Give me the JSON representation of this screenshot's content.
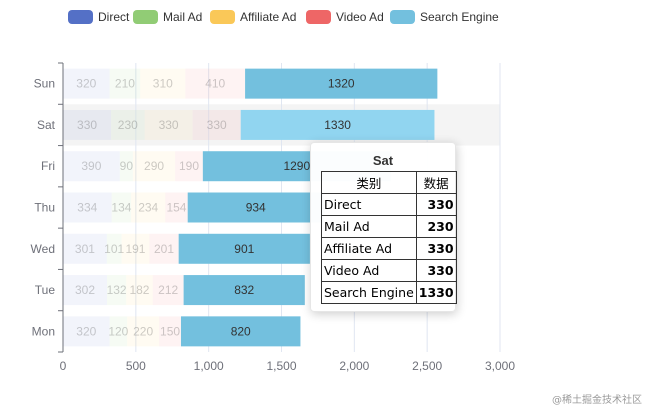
{
  "colors": {
    "Direct": "#5470c6",
    "Mail Ad": "#91cc75",
    "Affiliate Ad": "#fac858",
    "Video Ad": "#ee6666",
    "Search Engine": "#73c0de",
    "highlight": "#91d5f0",
    "axis": "#6e7079",
    "grid": "#e0e6f1"
  },
  "chart_data": {
    "type": "bar",
    "orientation": "horizontal",
    "stacked": true,
    "categories": [
      "Mon",
      "Tue",
      "Wed",
      "Thu",
      "Fri",
      "Sat",
      "Sun"
    ],
    "series": [
      {
        "name": "Direct",
        "values": [
          320,
          302,
          301,
          334,
          390,
          330,
          320
        ]
      },
      {
        "name": "Mail Ad",
        "values": [
          120,
          132,
          101,
          134,
          90,
          230,
          210
        ]
      },
      {
        "name": "Affiliate Ad",
        "values": [
          220,
          182,
          191,
          234,
          290,
          330,
          310
        ]
      },
      {
        "name": "Video Ad",
        "values": [
          150,
          212,
          201,
          154,
          190,
          330,
          410
        ]
      },
      {
        "name": "Search Engine",
        "values": [
          820,
          832,
          901,
          934,
          1290,
          1330,
          1320
        ]
      }
    ],
    "xticks": [
      "0",
      "500",
      "1,000",
      "1,500",
      "2,000",
      "2,500",
      "3,000"
    ],
    "xlim": [
      0,
      3000
    ],
    "grid": true,
    "legend": "top-left",
    "highlighted_category": "Sat"
  },
  "tooltip": {
    "title": "Sat",
    "header_category": "类别",
    "header_value": "数据",
    "rows": [
      {
        "name": "Direct",
        "value": "330"
      },
      {
        "name": "Mail Ad",
        "value": "230"
      },
      {
        "name": "Affiliate Ad",
        "value": "330"
      },
      {
        "name": "Video Ad",
        "value": "330"
      },
      {
        "name": "Search Engine",
        "value": "1330"
      }
    ]
  },
  "watermark": "@稀土掘金技术社区"
}
